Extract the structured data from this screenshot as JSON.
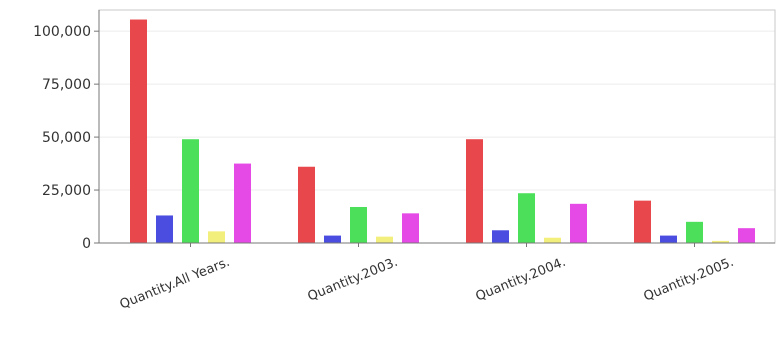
{
  "chart_data": {
    "type": "bar",
    "categories": [
      "Quantity.All Years.",
      "Quantity.2003.",
      "Quantity.2004.",
      "Quantity.2005."
    ],
    "series": [
      {
        "color": "#e8484c",
        "values": [
          105500,
          36000,
          49000,
          20000
        ]
      },
      {
        "color": "#4a4de0",
        "values": [
          13000,
          3500,
          6000,
          3500
        ]
      },
      {
        "color": "#4ce05a",
        "values": [
          49000,
          17000,
          23500,
          10000
        ]
      },
      {
        "color": "#f3ef7c",
        "values": [
          5500,
          3000,
          2500,
          1000
        ]
      },
      {
        "color": "#e64ae6",
        "values": [
          37500,
          14000,
          18500,
          7000
        ]
      }
    ],
    "yticks": [
      0,
      25000,
      50000,
      75000,
      100000
    ],
    "ytick_labels": [
      "0",
      "25,000",
      "50,000",
      "75,000",
      "100,000"
    ],
    "ylim": [
      0,
      110000
    ],
    "grid": true,
    "legend": "none",
    "xlabel": "",
    "ylabel": ""
  }
}
